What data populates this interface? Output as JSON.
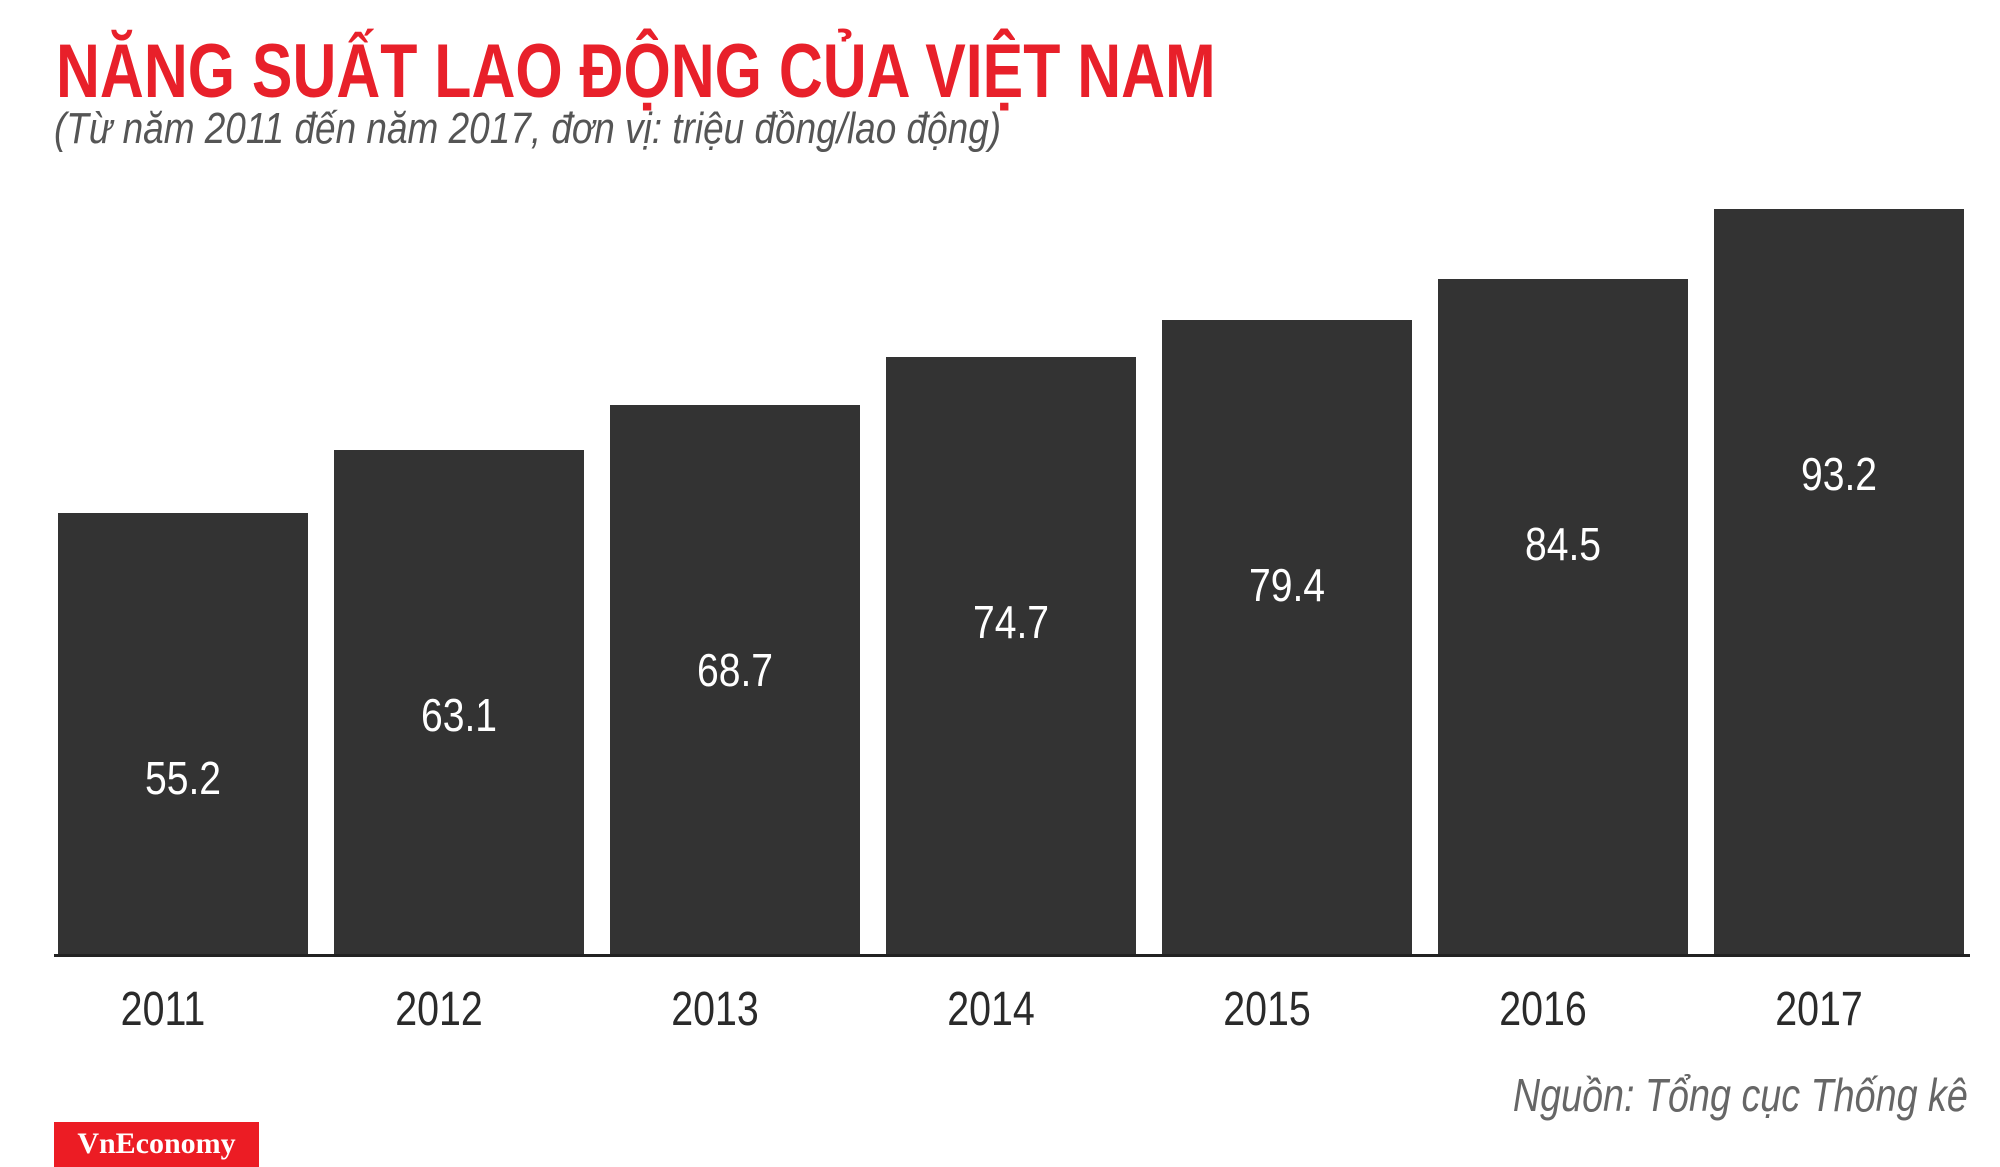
{
  "chart_data": {
    "type": "bar",
    "title": "NĂNG SUẤT LAO ĐỘNG CỦA VIỆT NAM",
    "subtitle": "(Từ năm 2011 đến năm 2017, đơn vị: triệu đồng/lao động)",
    "categories": [
      "2011",
      "2012",
      "2013",
      "2014",
      "2015",
      "2016",
      "2017"
    ],
    "values": [
      55.2,
      63.1,
      68.7,
      74.7,
      79.4,
      84.5,
      93.2
    ],
    "value_labels": [
      "55.2",
      "63.1",
      "68.7",
      "74.7",
      "79.4",
      "84.5",
      "93.2"
    ],
    "xlabel": "",
    "ylabel": "",
    "ylim": [
      0,
      93.2
    ],
    "grid": false,
    "bar_color": "#333333",
    "source": "Nguồn: Tổng cục Thống kê"
  },
  "branding": {
    "logo": "VnEconomy",
    "accent": "#ec1c24"
  }
}
